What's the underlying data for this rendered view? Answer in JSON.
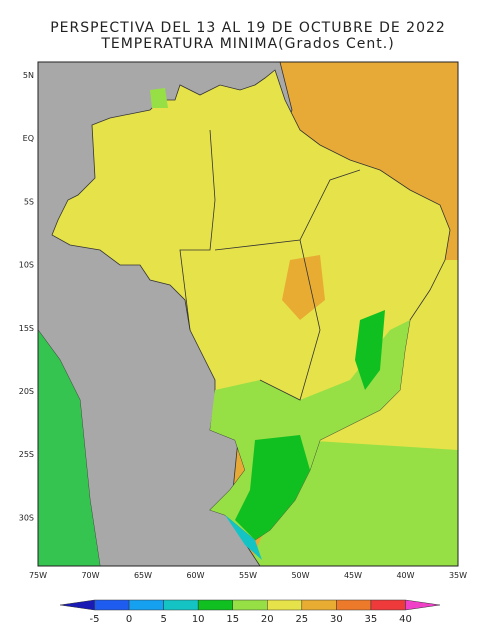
{
  "header": {
    "title": "PERSPECTIVA DEL 13 AL 19 DE OCTUBRE DE 2022",
    "subtitle": "TEMPERATURA MINIMA(Grados Cent.)"
  },
  "map": {
    "lon_labels": [
      "75W",
      "70W",
      "65W",
      "60W",
      "55W",
      "50W",
      "45W",
      "40W",
      "35W"
    ],
    "lat_labels": [
      "5N",
      "EQ",
      "5S",
      "10S",
      "15S",
      "20S",
      "25S",
      "30S"
    ]
  },
  "legend": {
    "labels": [
      "-5",
      "0",
      "5",
      "10",
      "15",
      "20",
      "25",
      "30",
      "35",
      "40"
    ],
    "colors": [
      "#1a1ab4",
      "#1e5cf0",
      "#16a0f0",
      "#14c4c4",
      "#10c020",
      "#96e046",
      "#e6e24a",
      "#e8ac32",
      "#ec7a2a",
      "#ee3a3a",
      "#f040c8"
    ]
  }
}
